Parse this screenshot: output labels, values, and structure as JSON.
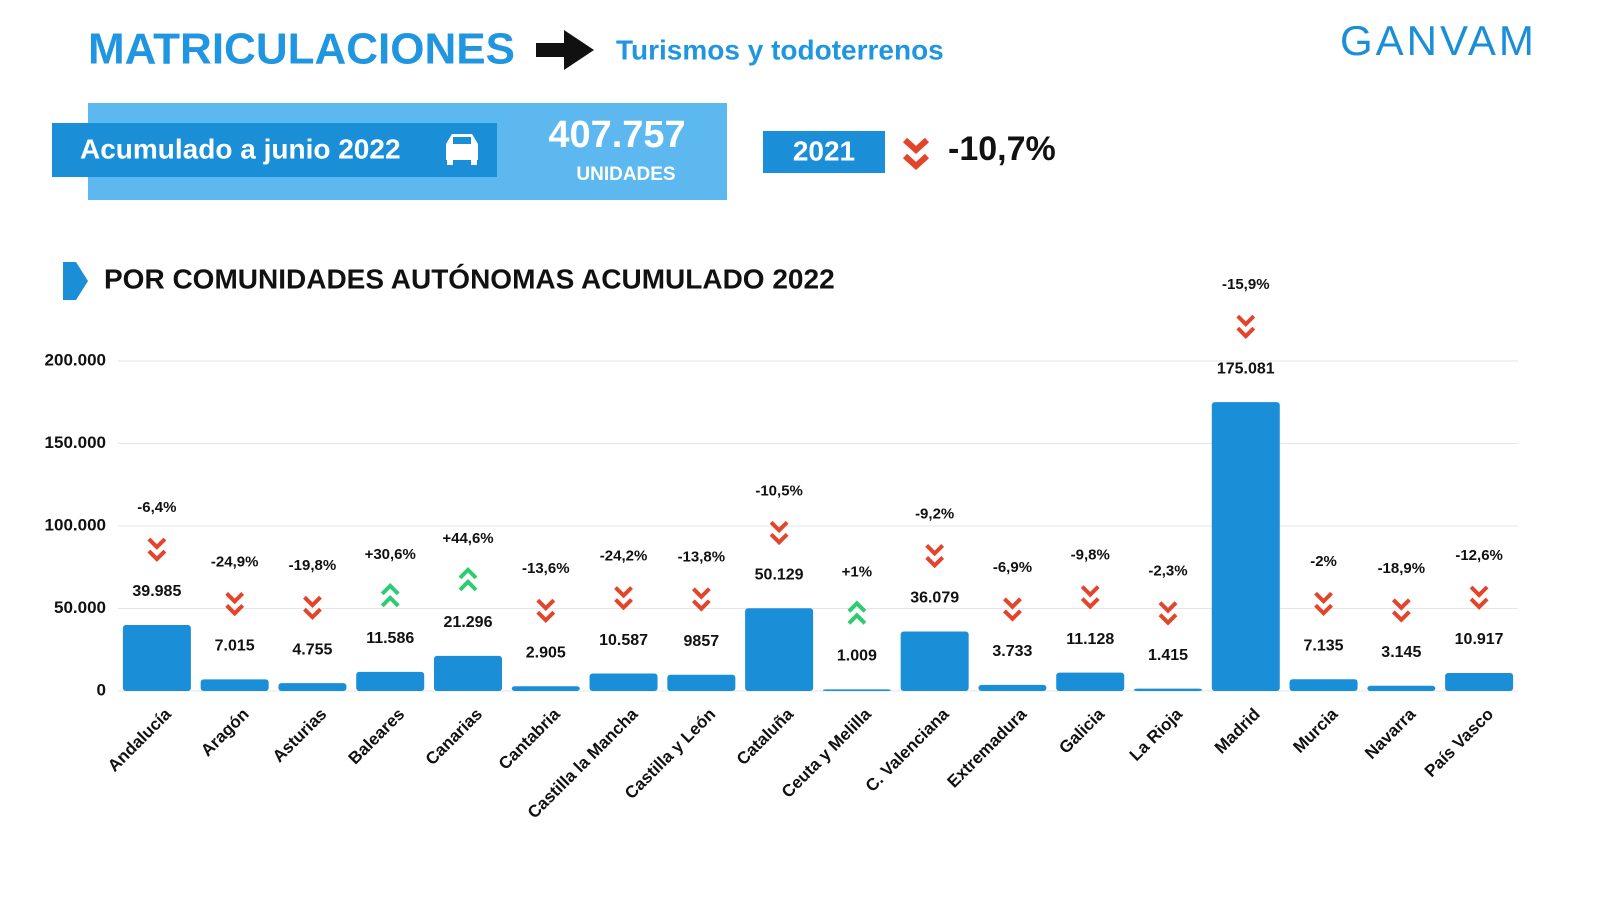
{
  "header": {
    "title": "MATRICULACIONES",
    "subtitle": "Turismos y todoterrenos",
    "logo": "GANVAM"
  },
  "summary": {
    "label": "Acumulado a junio 2022",
    "total": "407.757",
    "unit": "UNIDADES",
    "compare_year": "2021",
    "change": "-10,7%"
  },
  "chart_data": {
    "type": "bar",
    "title": "POR COMUNIDADES AUTÓNOMAS ACUMULADO 2022",
    "categories": [
      "Andalucía",
      "Aragón",
      "Asturias",
      "Baleares",
      "Canarias",
      "Cantabria",
      "Castilla la Mancha",
      "Castilla y León",
      "Cataluña",
      "Ceuta y Melilla",
      "C. Valenciana",
      "Extremadura",
      "Galicia",
      "La Rioja",
      "Madrid",
      "Murcia",
      "Navarra",
      "País Vasco"
    ],
    "values": [
      39985,
      7015,
      4755,
      11586,
      21296,
      2905,
      10587,
      9857,
      50129,
      1009,
      36079,
      3733,
      11128,
      1415,
      175081,
      7135,
      3145,
      10917
    ],
    "value_labels": [
      "39.985",
      "7.015",
      "4.755",
      "11.586",
      "21.296",
      "2.905",
      "10.587",
      "9857",
      "50.129",
      "1.009",
      "36.079",
      "3.733",
      "11.128",
      "1.415",
      "175.081",
      "7.135",
      "3.145",
      "10.917"
    ],
    "changes": [
      "-6,4%",
      "-24,9%",
      "-19,8%",
      "+30,6%",
      "+44,6%",
      "-13,6%",
      "-24,2%",
      "-13,8%",
      "-10,5%",
      "+1%",
      "-9,2%",
      "-6,9%",
      "-9,8%",
      "-2,3%",
      "-15,9%",
      "-2%",
      "-18,9%",
      "-12,6%"
    ],
    "color": "#1a8fd8",
    "ylim": [
      0,
      200000
    ],
    "yticks": [
      0,
      {
        "value": 50000,
        "label": "50.000"
      },
      {
        "value": 100000,
        "label": "100.000"
      },
      {
        "value": 150000,
        "label": "150.000"
      },
      {
        "value": 200000,
        "label": "200.000"
      }
    ],
    "grid": true
  }
}
